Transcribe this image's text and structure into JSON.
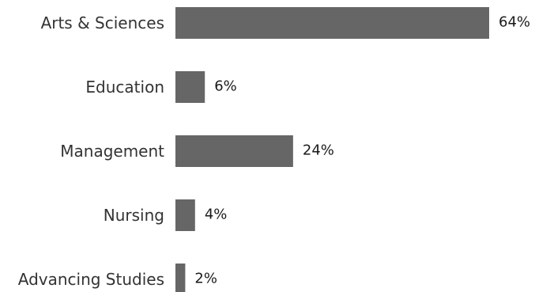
{
  "chart_data": {
    "type": "bar",
    "orientation": "horizontal",
    "categories": [
      "Arts & Sciences",
      "Education",
      "Management",
      "Nursing",
      "Advancing Studies"
    ],
    "values": [
      64,
      6,
      24,
      4,
      2
    ],
    "value_labels": [
      "64%",
      "6%",
      "24%",
      "4%",
      "2%"
    ],
    "unit": "%",
    "xlim": [
      0,
      64
    ],
    "grid": false,
    "legend": "none",
    "bar_color": "#666666"
  }
}
